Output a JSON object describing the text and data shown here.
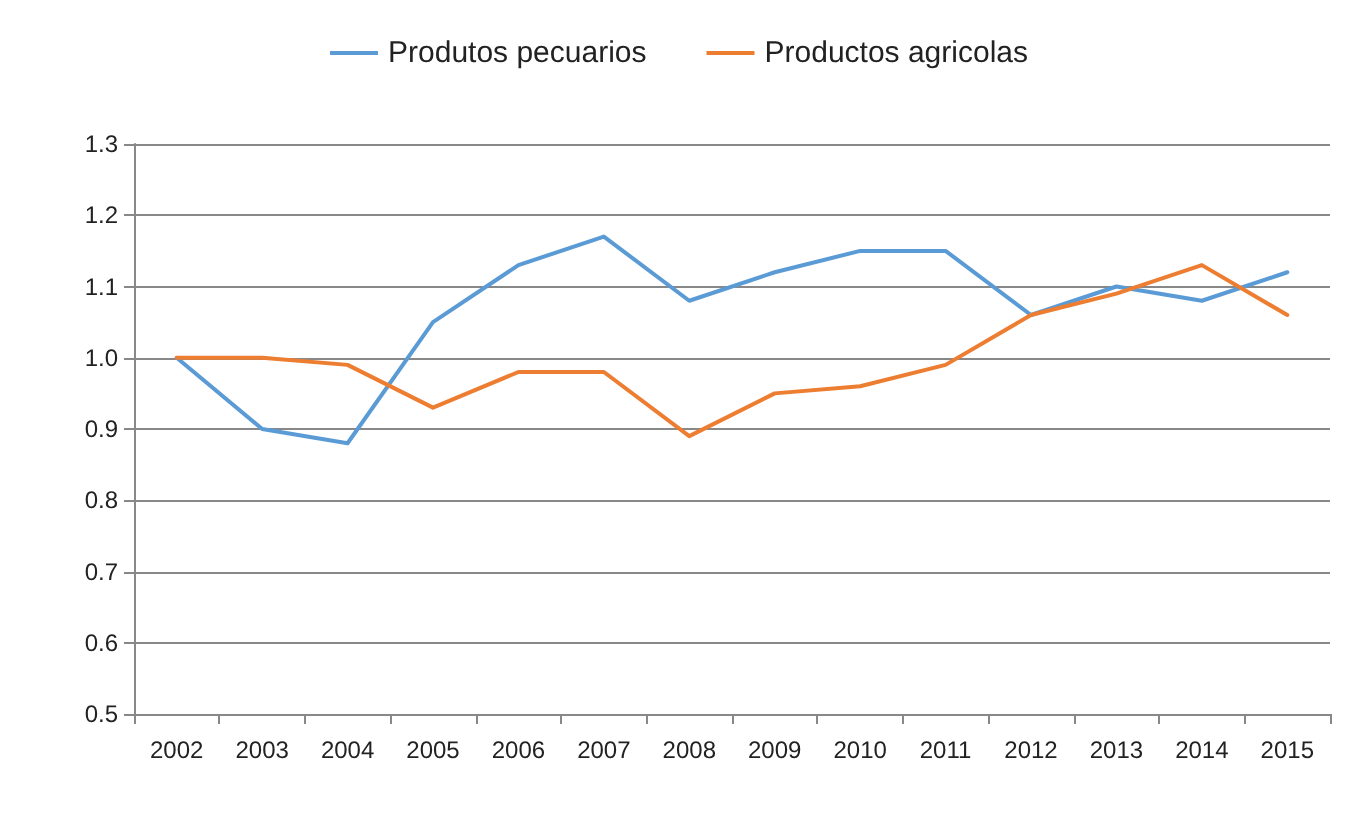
{
  "chart_data": {
    "type": "line",
    "categories": [
      "2002",
      "2003",
      "2004",
      "2005",
      "2006",
      "2007",
      "2008",
      "2009",
      "2010",
      "2011",
      "2012",
      "2013",
      "2014",
      "2015"
    ],
    "series": [
      {
        "name": "Produtos pecuarios",
        "color": "#5b9bd5",
        "values": [
          1.0,
          0.9,
          0.88,
          1.05,
          1.13,
          1.17,
          1.08,
          1.12,
          1.15,
          1.15,
          1.06,
          1.1,
          1.08,
          1.12
        ]
      },
      {
        "name": "Productos agricolas",
        "color": "#ed7d31",
        "values": [
          1.0,
          1.0,
          0.99,
          0.93,
          0.98,
          0.98,
          0.89,
          0.95,
          0.96,
          0.99,
          1.06,
          1.09,
          1.13,
          1.06
        ]
      }
    ],
    "ylim": [
      0.5,
      1.3
    ],
    "yticks": [
      0.5,
      0.6,
      0.7,
      0.8,
      0.9,
      {
        "value": 1.0,
        "label": "1.0"
      },
      1.1,
      1.2,
      1.3
    ],
    "grid": "y",
    "legend": "top",
    "marker": "none",
    "line_style": "solid"
  }
}
